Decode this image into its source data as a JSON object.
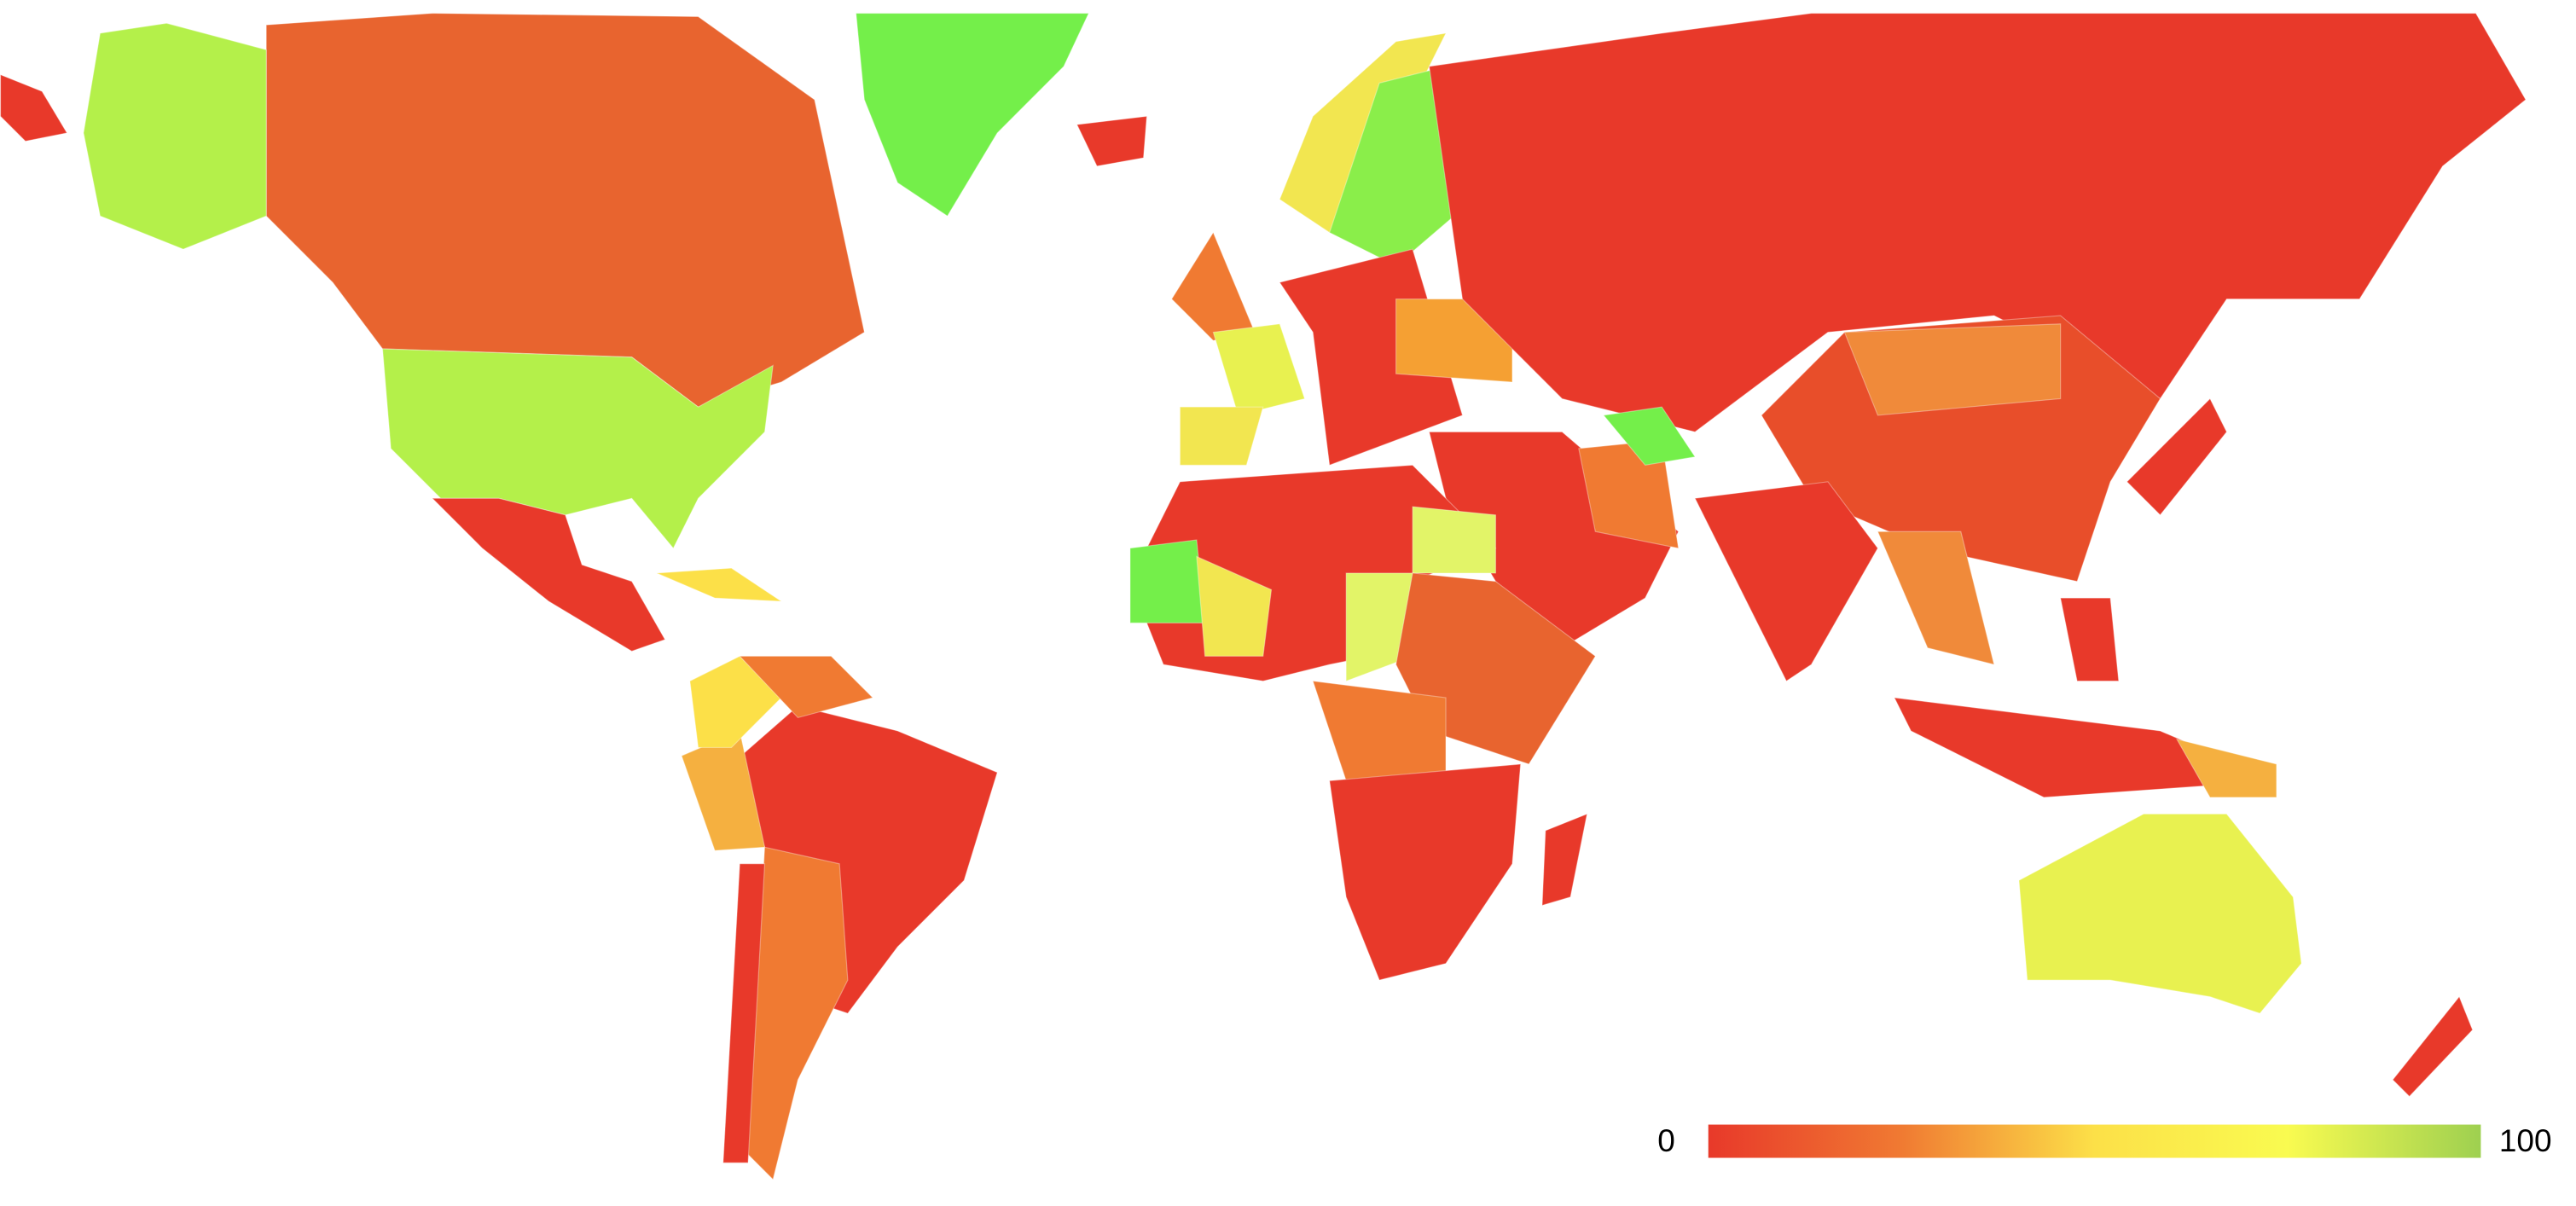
{
  "legend": {
    "min": 0,
    "max": 100,
    "colors": [
      "#e8392a",
      "#f07a32",
      "#fce048",
      "#f9fb50",
      "#9ed050"
    ]
  }
}
